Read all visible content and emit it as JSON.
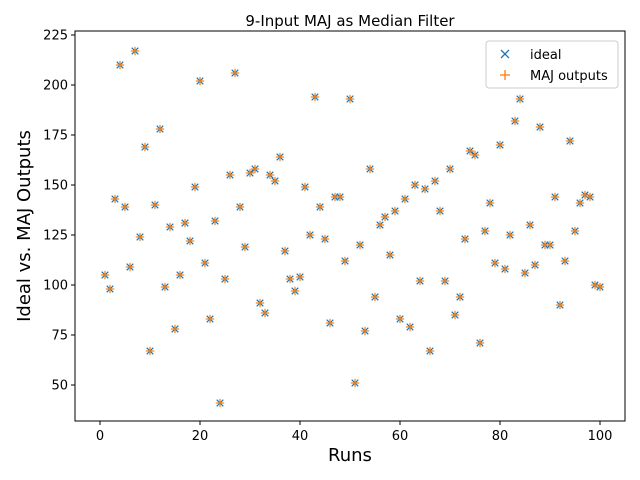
{
  "chart_data": {
    "type": "scatter",
    "title": "9-Input MAJ as Median Filter",
    "xlabel": "Runs",
    "ylabel": "Ideal vs. MAJ Outputs",
    "xlim": [
      -5,
      105
    ],
    "ylim": [
      32,
      227
    ],
    "xticks": [
      "0",
      "20",
      "40",
      "60",
      "80",
      "100"
    ],
    "yticks": [
      "50",
      "75",
      "100",
      "125",
      "150",
      "175",
      "200",
      "225"
    ],
    "legend_position": "top-right",
    "grid": false,
    "x": [
      1,
      2,
      3,
      4,
      5,
      6,
      7,
      8,
      9,
      10,
      11,
      12,
      13,
      14,
      15,
      16,
      17,
      18,
      19,
      20,
      21,
      22,
      23,
      24,
      25,
      26,
      27,
      28,
      29,
      30,
      31,
      32,
      33,
      34,
      35,
      36,
      37,
      38,
      39,
      40,
      41,
      42,
      43,
      44,
      45,
      46,
      47,
      48,
      49,
      50,
      51,
      52,
      53,
      54,
      55,
      56,
      57,
      58,
      59,
      60,
      61,
      62,
      63,
      64,
      65,
      66,
      67,
      68,
      69,
      70,
      71,
      72,
      73,
      74,
      75,
      76,
      77,
      78,
      79,
      80,
      81,
      82,
      83,
      84,
      85,
      86,
      87,
      88,
      89,
      90,
      91,
      92,
      93,
      94,
      95,
      96,
      97,
      98,
      99,
      100
    ],
    "series": [
      {
        "name": "ideal",
        "marker": "x",
        "color": "#1f77b4",
        "values": [
          105,
          98,
          143,
          210,
          139,
          109,
          217,
          124,
          169,
          67,
          140,
          178,
          99,
          129,
          78,
          105,
          131,
          122,
          149,
          202,
          111,
          83,
          132,
          41,
          103,
          155,
          206,
          139,
          119,
          156,
          158,
          91,
          86,
          155,
          152,
          164,
          117,
          103,
          97,
          104,
          149,
          125,
          194,
          139,
          123,
          81,
          144,
          144,
          112,
          193,
          51,
          120,
          77,
          158,
          94,
          130,
          134,
          115,
          137,
          83,
          143,
          79,
          150,
          102,
          148,
          67,
          152,
          137,
          102,
          158,
          85,
          94,
          123,
          167,
          165,
          71,
          127,
          141,
          111,
          170,
          108,
          125,
          182,
          193,
          106,
          130,
          110,
          179,
          120,
          120,
          144,
          90,
          112,
          172,
          127,
          141,
          145,
          144,
          100,
          99
        ]
      },
      {
        "name": "MAJ outputs",
        "marker": "+",
        "color": "#ff7f0e",
        "values": [
          105,
          98,
          143,
          210,
          139,
          109,
          217,
          124,
          169,
          67,
          140,
          178,
          99,
          129,
          78,
          105,
          131,
          122,
          149,
          202,
          111,
          83,
          132,
          41,
          103,
          155,
          206,
          139,
          119,
          156,
          158,
          91,
          86,
          155,
          152,
          164,
          117,
          103,
          97,
          104,
          149,
          125,
          194,
          139,
          123,
          81,
          144,
          144,
          112,
          193,
          51,
          120,
          77,
          158,
          94,
          130,
          134,
          115,
          137,
          83,
          143,
          79,
          150,
          102,
          148,
          67,
          152,
          137,
          102,
          158,
          85,
          94,
          123,
          167,
          165,
          71,
          127,
          141,
          111,
          170,
          108,
          125,
          182,
          193,
          106,
          130,
          110,
          179,
          120,
          120,
          144,
          90,
          112,
          172,
          127,
          141,
          145,
          144,
          100,
          99
        ]
      }
    ]
  }
}
